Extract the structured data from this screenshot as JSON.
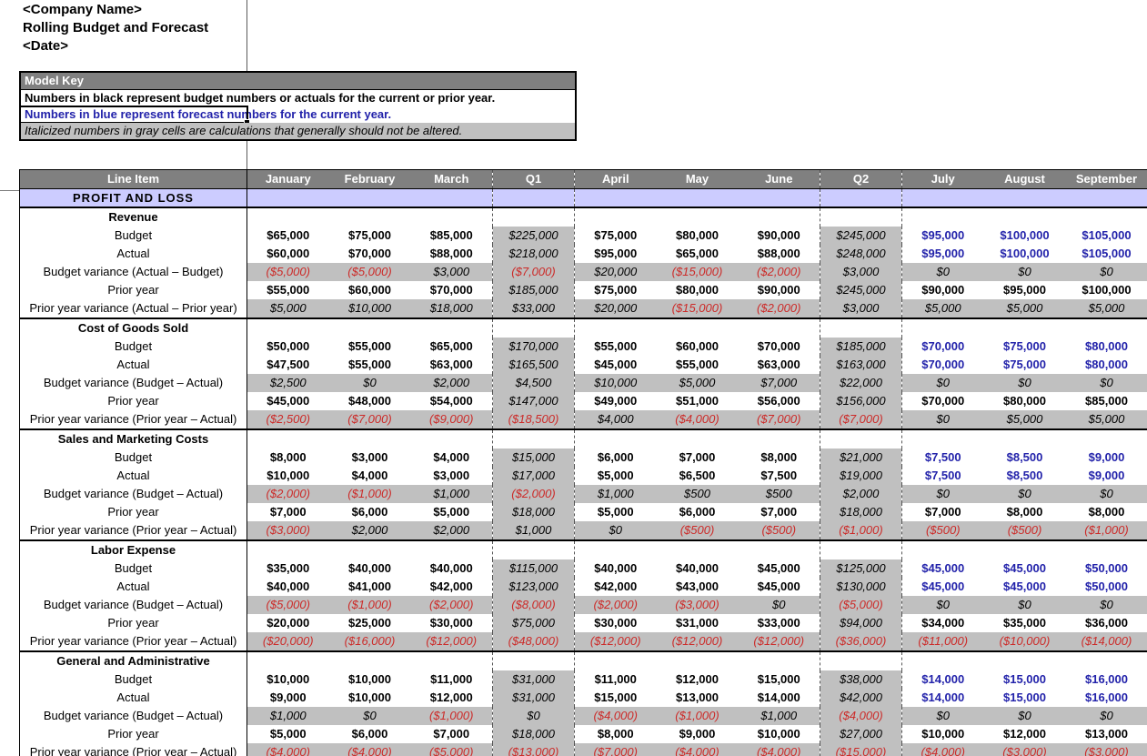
{
  "title_block": {
    "company": "<Company Name>",
    "report": "Rolling Budget and Forecast",
    "date": "<Date>"
  },
  "model_key": {
    "header": "Model Key",
    "lines": [
      {
        "text": "Numbers in black represent budget numbers or actuals for the current or prior year.",
        "style": "black"
      },
      {
        "text": "Numbers in blue represent forecast numbers for the current year.",
        "style": "blue",
        "selected": true
      },
      {
        "text": "Italicized numbers in gray cells are calculations that generally should not be altered.",
        "style": "gray-italic"
      }
    ]
  },
  "colors": {
    "header_gray": "#808080",
    "band_lavender": "#ccccff",
    "section_yellow": "#ffffcc",
    "calc_gray": "#c0c0c0",
    "negative_red": "#cc2a28",
    "forecast_blue": "#2222aa"
  },
  "table": {
    "line_item_header": "Line Item",
    "group_header": "PROFIT AND LOSS",
    "columns": [
      "January",
      "February",
      "March",
      "Q1",
      "April",
      "May",
      "June",
      "Q2",
      "July",
      "August",
      "September"
    ],
    "quarter_col_indexes": [
      3,
      7
    ],
    "forecast_col_indexes": [
      8,
      9,
      10
    ],
    "sections": [
      {
        "name": "Revenue",
        "rows": [
          {
            "label": "Budget",
            "kind": "budget",
            "values": [
              "$65,000",
              "$75,000",
              "$85,000",
              "$225,000",
              "$75,000",
              "$80,000",
              "$90,000",
              "$245,000",
              "$95,000",
              "$100,000",
              "$105,000"
            ]
          },
          {
            "label": "Actual",
            "kind": "actual",
            "values": [
              "$60,000",
              "$70,000",
              "$88,000",
              "$218,000",
              "$95,000",
              "$65,000",
              "$88,000",
              "$248,000",
              "$95,000",
              "$100,000",
              "$105,000"
            ]
          },
          {
            "label": "Budget variance (Actual – Budget)",
            "kind": "variance",
            "values": [
              "($5,000)",
              "($5,000)",
              "$3,000",
              "($7,000)",
              "$20,000",
              "($15,000)",
              "($2,000)",
              "$3,000",
              "$0",
              "$0",
              "$0"
            ]
          },
          {
            "label": "Prior year",
            "kind": "prior",
            "values": [
              "$55,000",
              "$60,000",
              "$70,000",
              "$185,000",
              "$75,000",
              "$80,000",
              "$90,000",
              "$245,000",
              "$90,000",
              "$95,000",
              "$100,000"
            ]
          },
          {
            "label": "Prior year variance (Actual – Prior year)",
            "kind": "variance",
            "values": [
              "$5,000",
              "$10,000",
              "$18,000",
              "$33,000",
              "$20,000",
              "($15,000)",
              "($2,000)",
              "$3,000",
              "$5,000",
              "$5,000",
              "$5,000"
            ]
          }
        ]
      },
      {
        "name": "Cost of Goods Sold",
        "rows": [
          {
            "label": "Budget",
            "kind": "budget",
            "values": [
              "$50,000",
              "$55,000",
              "$65,000",
              "$170,000",
              "$55,000",
              "$60,000",
              "$70,000",
              "$185,000",
              "$70,000",
              "$75,000",
              "$80,000"
            ]
          },
          {
            "label": "Actual",
            "kind": "actual",
            "values": [
              "$47,500",
              "$55,000",
              "$63,000",
              "$165,500",
              "$45,000",
              "$55,000",
              "$63,000",
              "$163,000",
              "$70,000",
              "$75,000",
              "$80,000"
            ]
          },
          {
            "label": "Budget variance (Budget – Actual)",
            "kind": "variance",
            "values": [
              "$2,500",
              "$0",
              "$2,000",
              "$4,500",
              "$10,000",
              "$5,000",
              "$7,000",
              "$22,000",
              "$0",
              "$0",
              "$0"
            ]
          },
          {
            "label": "Prior year",
            "kind": "prior",
            "values": [
              "$45,000",
              "$48,000",
              "$54,000",
              "$147,000",
              "$49,000",
              "$51,000",
              "$56,000",
              "$156,000",
              "$70,000",
              "$80,000",
              "$85,000"
            ]
          },
          {
            "label": "Prior year variance (Prior year – Actual)",
            "kind": "variance",
            "values": [
              "($2,500)",
              "($7,000)",
              "($9,000)",
              "($18,500)",
              "$4,000",
              "($4,000)",
              "($7,000)",
              "($7,000)",
              "$0",
              "$5,000",
              "$5,000"
            ]
          }
        ]
      },
      {
        "name": "Sales and Marketing Costs",
        "rows": [
          {
            "label": "Budget",
            "kind": "budget",
            "values": [
              "$8,000",
              "$3,000",
              "$4,000",
              "$15,000",
              "$6,000",
              "$7,000",
              "$8,000",
              "$21,000",
              "$7,500",
              "$8,500",
              "$9,000"
            ]
          },
          {
            "label": "Actual",
            "kind": "actual",
            "values": [
              "$10,000",
              "$4,000",
              "$3,000",
              "$17,000",
              "$5,000",
              "$6,500",
              "$7,500",
              "$19,000",
              "$7,500",
              "$8,500",
              "$9,000"
            ]
          },
          {
            "label": "Budget variance (Budget – Actual)",
            "kind": "variance",
            "values": [
              "($2,000)",
              "($1,000)",
              "$1,000",
              "($2,000)",
              "$1,000",
              "$500",
              "$500",
              "$2,000",
              "$0",
              "$0",
              "$0"
            ]
          },
          {
            "label": "Prior year",
            "kind": "prior",
            "values": [
              "$7,000",
              "$6,000",
              "$5,000",
              "$18,000",
              "$5,000",
              "$6,000",
              "$7,000",
              "$18,000",
              "$7,000",
              "$8,000",
              "$8,000"
            ]
          },
          {
            "label": "Prior year variance (Prior year – Actual)",
            "kind": "variance",
            "values": [
              "($3,000)",
              "$2,000",
              "$2,000",
              "$1,000",
              "$0",
              "($500)",
              "($500)",
              "($1,000)",
              "($500)",
              "($500)",
              "($1,000)"
            ]
          }
        ]
      },
      {
        "name": "Labor Expense",
        "rows": [
          {
            "label": "Budget",
            "kind": "budget",
            "values": [
              "$35,000",
              "$40,000",
              "$40,000",
              "$115,000",
              "$40,000",
              "$40,000",
              "$45,000",
              "$125,000",
              "$45,000",
              "$45,000",
              "$50,000"
            ]
          },
          {
            "label": "Actual",
            "kind": "actual",
            "values": [
              "$40,000",
              "$41,000",
              "$42,000",
              "$123,000",
              "$42,000",
              "$43,000",
              "$45,000",
              "$130,000",
              "$45,000",
              "$45,000",
              "$50,000"
            ]
          },
          {
            "label": "Budget variance (Budget – Actual)",
            "kind": "variance",
            "values": [
              "($5,000)",
              "($1,000)",
              "($2,000)",
              "($8,000)",
              "($2,000)",
              "($3,000)",
              "$0",
              "($5,000)",
              "$0",
              "$0",
              "$0"
            ]
          },
          {
            "label": "Prior year",
            "kind": "prior",
            "values": [
              "$20,000",
              "$25,000",
              "$30,000",
              "$75,000",
              "$30,000",
              "$31,000",
              "$33,000",
              "$94,000",
              "$34,000",
              "$35,000",
              "$36,000"
            ]
          },
          {
            "label": "Prior year variance (Prior year – Actual)",
            "kind": "variance",
            "values": [
              "($20,000)",
              "($16,000)",
              "($12,000)",
              "($48,000)",
              "($12,000)",
              "($12,000)",
              "($12,000)",
              "($36,000)",
              "($11,000)",
              "($10,000)",
              "($14,000)"
            ]
          }
        ]
      },
      {
        "name": "General and Administrative",
        "rows": [
          {
            "label": "Budget",
            "kind": "budget",
            "values": [
              "$10,000",
              "$10,000",
              "$11,000",
              "$31,000",
              "$11,000",
              "$12,000",
              "$15,000",
              "$38,000",
              "$14,000",
              "$15,000",
              "$16,000"
            ]
          },
          {
            "label": "Actual",
            "kind": "actual",
            "values": [
              "$9,000",
              "$10,000",
              "$12,000",
              "$31,000",
              "$15,000",
              "$13,000",
              "$14,000",
              "$42,000",
              "$14,000",
              "$15,000",
              "$16,000"
            ]
          },
          {
            "label": "Budget variance (Budget – Actual)",
            "kind": "variance",
            "values": [
              "$1,000",
              "$0",
              "($1,000)",
              "$0",
              "($4,000)",
              "($1,000)",
              "$1,000",
              "($4,000)",
              "$0",
              "$0",
              "$0"
            ]
          },
          {
            "label": "Prior year",
            "kind": "prior",
            "values": [
              "$5,000",
              "$6,000",
              "$7,000",
              "$18,000",
              "$8,000",
              "$9,000",
              "$10,000",
              "$27,000",
              "$10,000",
              "$12,000",
              "$13,000"
            ]
          },
          {
            "label": "Prior year variance (Prior year – Actual)",
            "kind": "variance",
            "values": [
              "($4,000)",
              "($4,000)",
              "($5,000)",
              "($13,000)",
              "($7,000)",
              "($4,000)",
              "($4,000)",
              "($15,000)",
              "($4,000)",
              "($3,000)",
              "($3,000)"
            ]
          }
        ]
      }
    ]
  }
}
